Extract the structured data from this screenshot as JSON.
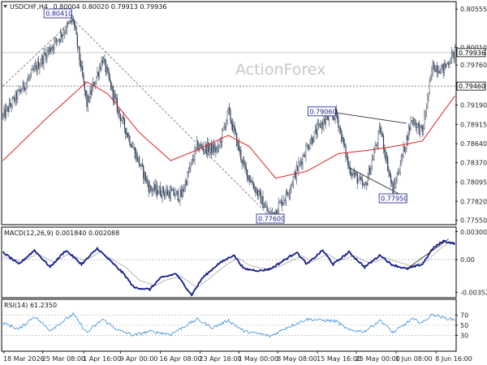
{
  "chart_data": [
    {
      "type": "candlestick",
      "title": "USDCHF,H4",
      "ohlc_label": "0.80004 0.80020 0.79913 0.79936",
      "watermark": "ActionForex",
      "ylim": [
        0.775,
        0.8065
      ],
      "y_ticks": [
        "0.80555",
        "0.80010",
        "0.79760",
        "0.79190",
        "0.78915",
        "0.78640",
        "0.78370",
        "0.78095",
        "0.77820",
        "0.77550"
      ],
      "y_tick_values": [
        0.80555,
        0.8001,
        0.7976,
        0.7919,
        0.78915,
        0.7864,
        0.7837,
        0.78095,
        0.7782,
        0.7755
      ],
      "x_ticks": [
        "18 Mar 2026",
        "25 Mar 08:00",
        "1 Apr 16:00",
        "9 Apr 00:00",
        "16 Apr 08:00",
        "23 Apr 16:00",
        "1 May 00:00",
        "8 May 08:00",
        "15 May 16:00",
        "25 May 00:00",
        "1 Jun 08:00",
        "8 Jun 16:00"
      ],
      "x_tick_index": [
        1,
        38,
        77,
        112,
        150,
        188,
        225,
        262,
        300,
        337,
        375,
        413
      ],
      "n_bars": 432,
      "pivots": [
        [
          0,
          0.7903
        ],
        [
          40,
          0.799
        ],
        [
          67,
          0.8041
        ],
        [
          80,
          0.792
        ],
        [
          95,
          0.7985
        ],
        [
          110,
          0.791
        ],
        [
          140,
          0.78
        ],
        [
          170,
          0.779
        ],
        [
          185,
          0.786
        ],
        [
          205,
          0.7855
        ],
        [
          215,
          0.791
        ],
        [
          230,
          0.783
        ],
        [
          255,
          0.776
        ],
        [
          270,
          0.779
        ],
        [
          290,
          0.786
        ],
        [
          305,
          0.7895
        ],
        [
          318,
          0.7906
        ],
        [
          330,
          0.783
        ],
        [
          345,
          0.78
        ],
        [
          360,
          0.7885
        ],
        [
          372,
          0.7795
        ],
        [
          390,
          0.79
        ],
        [
          400,
          0.788
        ],
        [
          410,
          0.7975
        ],
        [
          420,
          0.797
        ],
        [
          431,
          0.7994
        ]
      ],
      "ma_pivots": [
        [
          0,
          0.784
        ],
        [
          40,
          0.7898
        ],
        [
          80,
          0.7952
        ],
        [
          100,
          0.7935
        ],
        [
          130,
          0.788
        ],
        [
          160,
          0.784
        ],
        [
          185,
          0.7855
        ],
        [
          215,
          0.7876
        ],
        [
          235,
          0.786
        ],
        [
          260,
          0.7815
        ],
        [
          290,
          0.7825
        ],
        [
          320,
          0.785
        ],
        [
          350,
          0.7855
        ],
        [
          380,
          0.7862
        ],
        [
          400,
          0.7868
        ],
        [
          431,
          0.7932
        ]
      ],
      "current_price": {
        "label": "0.79936",
        "value": 0.79936
      },
      "level_price": {
        "label": "0.79460",
        "value": 0.7946
      },
      "callouts": [
        {
          "label": "0.80410",
          "index": 67,
          "value": 0.8041
        },
        {
          "label": "0.77600",
          "index": 255,
          "value": 0.776
        },
        {
          "label": "0.79060",
          "index": 318,
          "value": 0.7906
        },
        {
          "label": "0.77950",
          "index": 372,
          "value": 0.7795
        }
      ],
      "trendlines": [
        {
          "from": [
            0,
            0.7946
          ],
          "to": [
            67,
            0.8041
          ],
          "style": "dashed"
        },
        {
          "from": [
            67,
            0.8041
          ],
          "to": [
            255,
            0.776
          ],
          "style": "dashed"
        },
        {
          "from": [
            318,
            0.7908
          ],
          "to": [
            385,
            0.7893
          ],
          "style": "solid"
        },
        {
          "from": [
            330,
            0.783
          ],
          "to": [
            385,
            0.7787
          ],
          "style": "solid"
        }
      ]
    },
    {
      "type": "line",
      "title": "MACD(12,26,9) 0.001840 0.002088",
      "ylim": [
        -0.004,
        0.0034
      ],
      "y_ticks": [
        "0.003009",
        "0.00",
        "-0.003528"
      ],
      "y_tick_values": [
        0.003009,
        0.0,
        -0.003528
      ],
      "macd_pivots": [
        [
          0,
          0.0008
        ],
        [
          15,
          -0.0005
        ],
        [
          30,
          0.001
        ],
        [
          45,
          -0.0008
        ],
        [
          60,
          0.001
        ],
        [
          75,
          -0.0005
        ],
        [
          90,
          0.0012
        ],
        [
          115,
          -0.0015
        ],
        [
          125,
          -0.003
        ],
        [
          140,
          -0.0032
        ],
        [
          150,
          -0.002
        ],
        [
          165,
          -0.0015
        ],
        [
          180,
          -0.0038
        ],
        [
          190,
          -0.002
        ],
        [
          205,
          -0.0005
        ],
        [
          220,
          0.0005
        ],
        [
          230,
          -0.001
        ],
        [
          245,
          -0.0012
        ],
        [
          255,
          -0.001
        ],
        [
          265,
          -0.0003
        ],
        [
          280,
          0.0008
        ],
        [
          290,
          -0.0005
        ],
        [
          305,
          0.001
        ],
        [
          315,
          -0.0005
        ],
        [
          330,
          0.0008
        ],
        [
          345,
          -0.0008
        ],
        [
          360,
          0.0005
        ],
        [
          370,
          -0.0005
        ],
        [
          385,
          -0.001
        ],
        [
          400,
          -0.0005
        ],
        [
          410,
          0.0012
        ],
        [
          420,
          0.002
        ],
        [
          431,
          0.0017
        ]
      ],
      "signal_pivots": [
        [
          0,
          0.0003
        ],
        [
          18,
          -0.0002
        ],
        [
          33,
          0.0006
        ],
        [
          48,
          -0.0003
        ],
        [
          63,
          0.0006
        ],
        [
          78,
          -0.0001
        ],
        [
          93,
          0.0008
        ],
        [
          118,
          -0.0009
        ],
        [
          130,
          -0.0022
        ],
        [
          145,
          -0.0028
        ],
        [
          155,
          -0.0022
        ],
        [
          170,
          -0.0018
        ],
        [
          185,
          -0.003
        ],
        [
          195,
          -0.0022
        ],
        [
          210,
          -0.0008
        ],
        [
          224,
          0.0002
        ],
        [
          235,
          -0.0006
        ],
        [
          250,
          -0.001
        ],
        [
          260,
          -0.0009
        ],
        [
          270,
          -0.0004
        ],
        [
          285,
          0.0004
        ],
        [
          295,
          -0.0002
        ],
        [
          310,
          0.0006
        ],
        [
          320,
          -0.0001
        ],
        [
          335,
          0.0004
        ],
        [
          350,
          -0.0004
        ],
        [
          365,
          0.0002
        ],
        [
          375,
          -0.0002
        ],
        [
          390,
          -0.0007
        ],
        [
          405,
          -0.0001
        ],
        [
          415,
          0.001
        ],
        [
          425,
          0.0018
        ],
        [
          431,
          0.0019
        ]
      ],
      "trendline": {
        "from": [
          385,
          -0.001
        ],
        "to": [
          425,
          0.0022
        ]
      }
    },
    {
      "type": "line",
      "title": "RSI(14) 61.2350",
      "ylim": [
        0,
        100
      ],
      "y_ticks": [
        "70",
        "50",
        "30"
      ],
      "y_tick_values": [
        70,
        50,
        30
      ],
      "rsi_pivots": [
        [
          0,
          55
        ],
        [
          15,
          42
        ],
        [
          30,
          68
        ],
        [
          45,
          40
        ],
        [
          67,
          72
        ],
        [
          80,
          35
        ],
        [
          95,
          62
        ],
        [
          110,
          40
        ],
        [
          125,
          30
        ],
        [
          140,
          38
        ],
        [
          160,
          32
        ],
        [
          185,
          62
        ],
        [
          200,
          45
        ],
        [
          215,
          60
        ],
        [
          230,
          38
        ],
        [
          245,
          33
        ],
        [
          255,
          28
        ],
        [
          270,
          45
        ],
        [
          290,
          62
        ],
        [
          305,
          60
        ],
        [
          318,
          58
        ],
        [
          330,
          40
        ],
        [
          345,
          38
        ],
        [
          360,
          60
        ],
        [
          372,
          35
        ],
        [
          390,
          62
        ],
        [
          400,
          55
        ],
        [
          410,
          72
        ],
        [
          420,
          65
        ],
        [
          431,
          61
        ]
      ]
    }
  ]
}
